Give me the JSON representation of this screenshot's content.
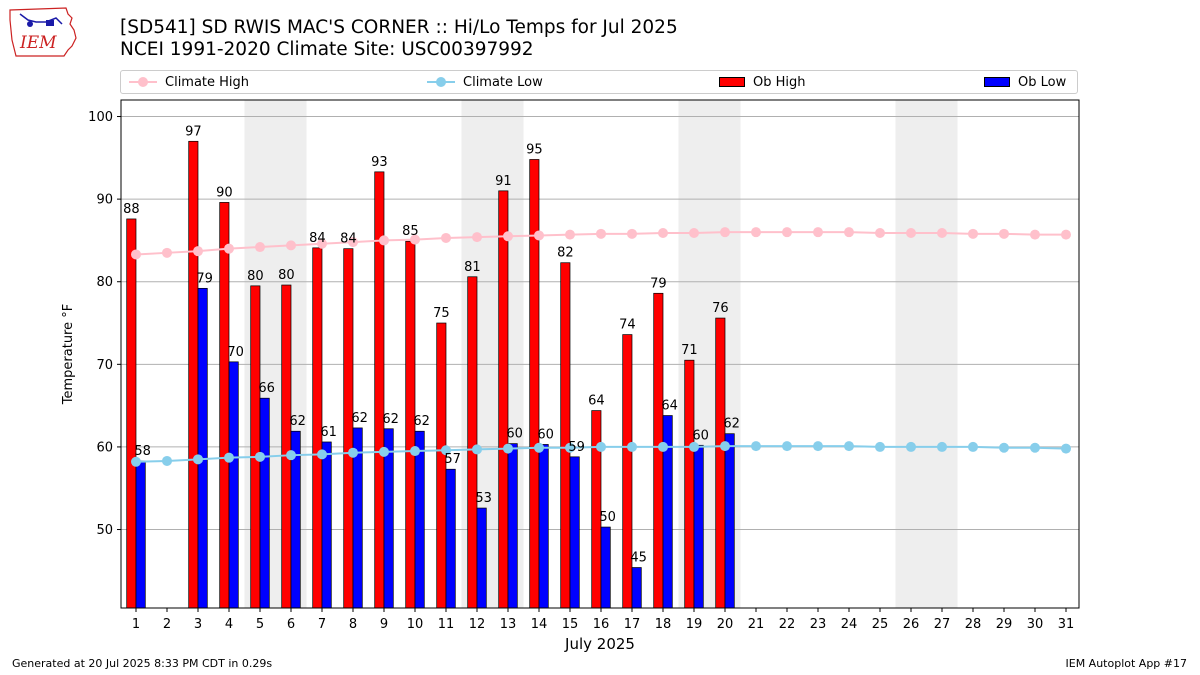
{
  "header": {
    "logo_text": "IEM",
    "title_line1": "[SD541] SD RWIS MAC'S CORNER :: Hi/Lo Temps for Jul 2025",
    "title_line2": "NCEI 1991-2020 Climate Site: USC00397992"
  },
  "legend": {
    "climate_high": "Climate High",
    "climate_low": "Climate Low",
    "ob_high": "Ob High",
    "ob_low": "Ob Low"
  },
  "footer": {
    "generated": "Generated at 20 Jul 2025 8:33 PM CDT in 0.29s",
    "app": "IEM Autoplot App #17"
  },
  "colors": {
    "ob_high": "#ff0000",
    "ob_low": "#0000ff",
    "climate_high": "#ffc0cb",
    "climate_low": "#87ceeb",
    "weekend_band": "#eeeeee",
    "grid": "#b0b0b0"
  },
  "chart_data": {
    "type": "bar",
    "xlabel": "July 2025",
    "ylabel": "Temperature °F",
    "ylim": [
      40.5,
      102
    ],
    "yticks": [
      50,
      60,
      70,
      80,
      90,
      100
    ],
    "grid": "horizontal",
    "legend_position": "top",
    "categories": [
      "1",
      "2",
      "3",
      "4",
      "5",
      "6",
      "7",
      "8",
      "9",
      "10",
      "11",
      "12",
      "13",
      "14",
      "15",
      "16",
      "17",
      "18",
      "19",
      "20",
      "21",
      "22",
      "23",
      "24",
      "25",
      "26",
      "27",
      "28",
      "29",
      "30",
      "31"
    ],
    "weekend_days": [
      5,
      6,
      12,
      13,
      19,
      20,
      26,
      27
    ],
    "series": [
      {
        "name": "Ob High",
        "kind": "bar",
        "values": [
          87.6,
          null,
          97.0,
          89.6,
          79.5,
          79.6,
          84.1,
          84.0,
          93.3,
          84.9,
          75.0,
          80.6,
          91.0,
          94.8,
          82.3,
          64.4,
          73.6,
          78.6,
          70.5,
          75.6,
          null,
          null,
          null,
          null,
          null,
          null,
          null,
          null,
          null,
          null,
          null
        ],
        "labels": [
          "88",
          null,
          "97",
          "90",
          "80",
          "80",
          "84",
          "84",
          "93",
          "85",
          "75",
          "81",
          "91",
          "95",
          "82",
          "64",
          "74",
          "79",
          "71",
          "76",
          null,
          null,
          null,
          null,
          null,
          null,
          null,
          null,
          null,
          null,
          null
        ]
      },
      {
        "name": "Ob Low",
        "kind": "bar",
        "values": [
          58.3,
          null,
          79.2,
          70.3,
          65.9,
          61.9,
          60.6,
          62.3,
          62.2,
          61.9,
          57.3,
          52.6,
          60.4,
          60.3,
          58.8,
          50.3,
          45.4,
          63.8,
          60.2,
          61.6,
          null,
          null,
          null,
          null,
          null,
          null,
          null,
          null,
          null,
          null,
          null
        ],
        "labels": [
          "58",
          null,
          "79",
          "70",
          "66",
          "62",
          "61",
          "62",
          "62",
          "62",
          "57",
          "53",
          "60",
          "60",
          "59",
          "50",
          "45",
          "64",
          "60",
          "62",
          null,
          null,
          null,
          null,
          null,
          null,
          null,
          null,
          null,
          null,
          null
        ]
      },
      {
        "name": "Climate High",
        "kind": "line",
        "values": [
          83.3,
          83.5,
          83.7,
          84.0,
          84.2,
          84.4,
          84.6,
          84.8,
          85.0,
          85.1,
          85.3,
          85.4,
          85.5,
          85.6,
          85.7,
          85.8,
          85.8,
          85.9,
          85.9,
          86.0,
          86.0,
          86.0,
          86.0,
          86.0,
          85.9,
          85.9,
          85.9,
          85.8,
          85.8,
          85.7,
          85.7
        ]
      },
      {
        "name": "Climate Low",
        "kind": "line",
        "values": [
          58.2,
          58.3,
          58.5,
          58.7,
          58.8,
          59.0,
          59.1,
          59.3,
          59.4,
          59.5,
          59.6,
          59.7,
          59.8,
          59.9,
          59.9,
          60.0,
          60.0,
          60.0,
          60.0,
          60.1,
          60.1,
          60.1,
          60.1,
          60.1,
          60.0,
          60.0,
          60.0,
          60.0,
          59.9,
          59.9,
          59.8
        ]
      }
    ]
  }
}
